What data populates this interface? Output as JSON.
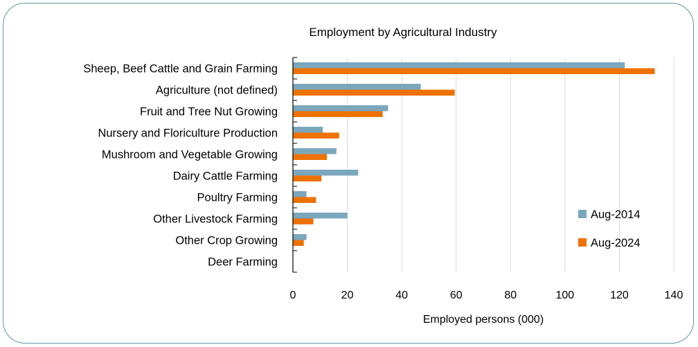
{
  "chart_data": {
    "type": "bar",
    "orientation": "horizontal",
    "title": "Employment by Agricultural Industry",
    "xlabel": "Employed persons (000)",
    "ylabel": "",
    "xlim": [
      0,
      140
    ],
    "xticks": [
      0,
      20,
      40,
      60,
      80,
      100,
      120,
      140
    ],
    "grid": true,
    "legend_position": "right",
    "categories": [
      "Sheep, Beef Cattle and Grain Farming",
      "Agriculture (not defined)",
      "Fruit and Tree Nut Growing",
      "Nursery and Floriculture Production",
      "Mushroom and Vegetable Growing",
      "Dairy Cattle Farming",
      "Poultry Farming",
      "Other Livestock Farming",
      "Other Crop Growing",
      "Deer Farming"
    ],
    "series": [
      {
        "name": "Aug-2014",
        "color": "#7ba7bc",
        "values": [
          122,
          47,
          35,
          11,
          16,
          24,
          5,
          20,
          5,
          0
        ]
      },
      {
        "name": "Aug-2024",
        "color": "#ee7203",
        "values": [
          133,
          59.5,
          33,
          17,
          12.5,
          10.5,
          8.5,
          7.5,
          4,
          0
        ]
      }
    ]
  }
}
